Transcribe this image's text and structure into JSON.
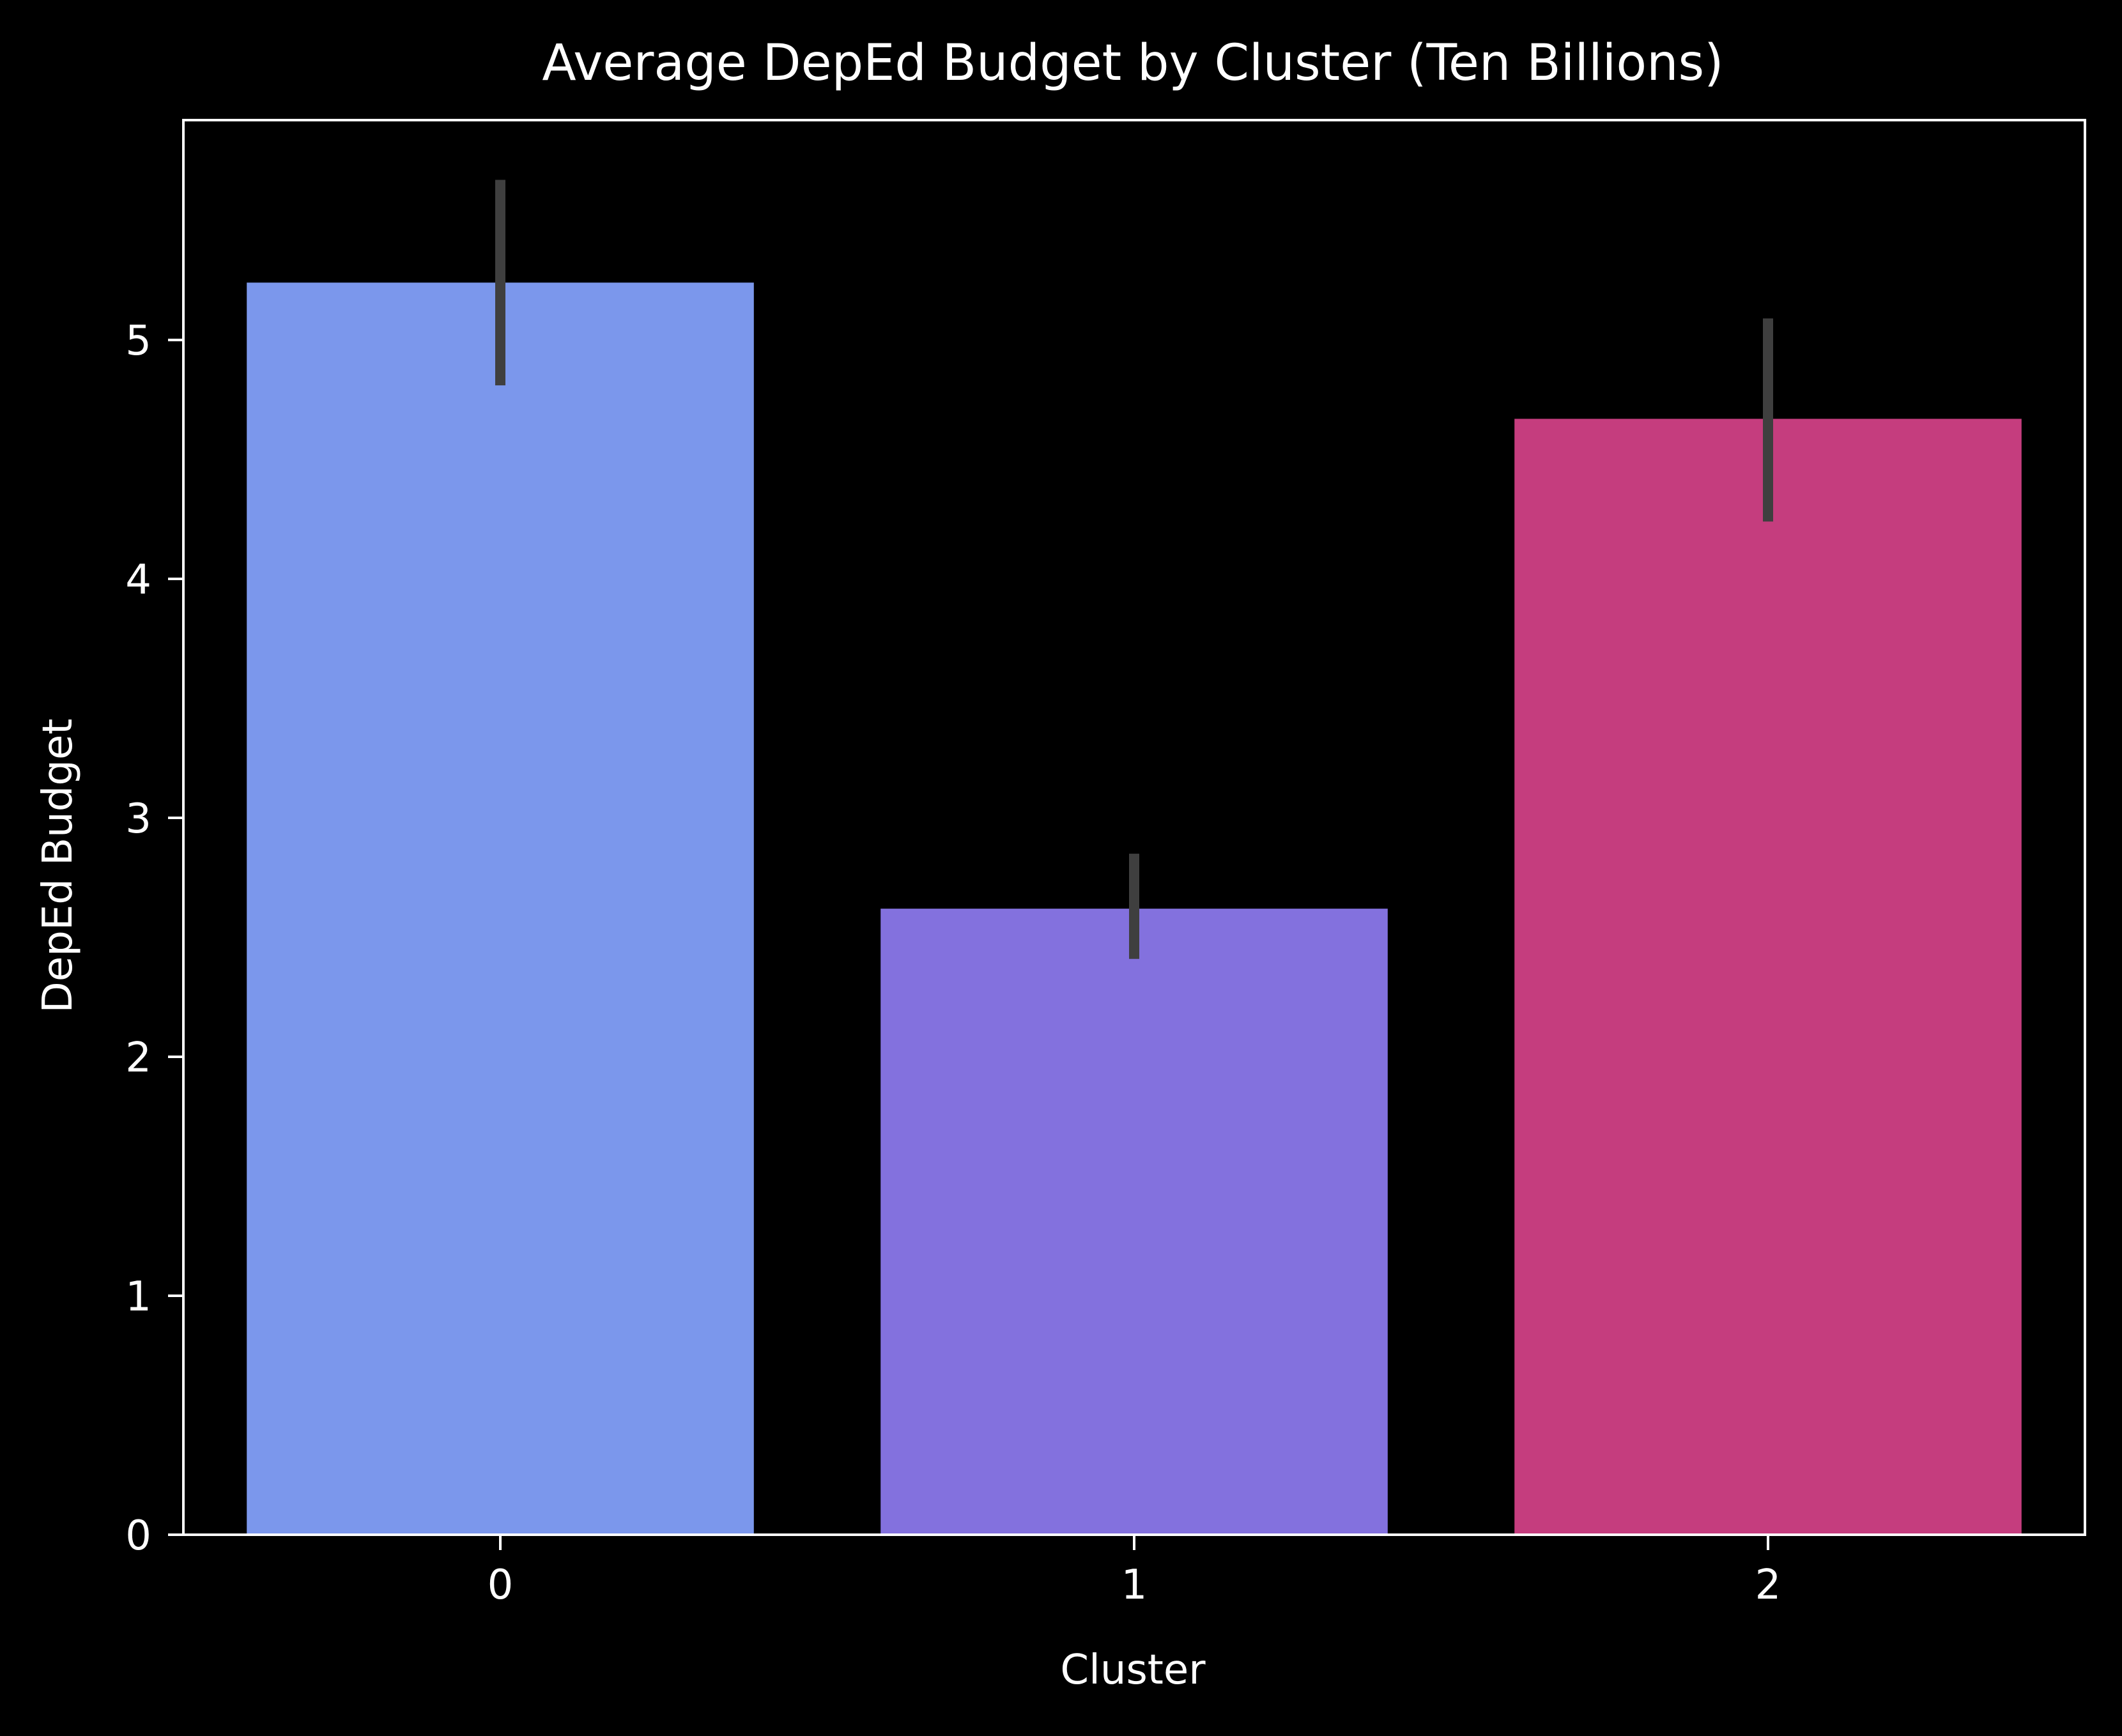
{
  "chart_data": {
    "type": "bar",
    "title": "Average DepEd Budget by Cluster (Ten Billions)",
    "xlabel": "Cluster",
    "ylabel": "DepEd Budget",
    "categories": [
      "0",
      "1",
      "2"
    ],
    "values": [
      5.24,
      2.62,
      4.67
    ],
    "error_bars": [
      {
        "low": 4.81,
        "high": 5.67
      },
      {
        "low": 2.41,
        "high": 2.85
      },
      {
        "low": 4.24,
        "high": 5.09
      }
    ],
    "ylim": [
      0,
      5.92
    ],
    "yticks": [
      0,
      1,
      2,
      3,
      4,
      5
    ],
    "xlim": [
      -0.5,
      2.5
    ],
    "grid": false,
    "legend": "none",
    "colors": {
      "background": "#000000",
      "axes": "#ffffff",
      "text": "#ffffff",
      "error_bar": "#3f3f3f",
      "bars": [
        "#7b97ec",
        "#8371de",
        "#c53d7e"
      ]
    }
  }
}
